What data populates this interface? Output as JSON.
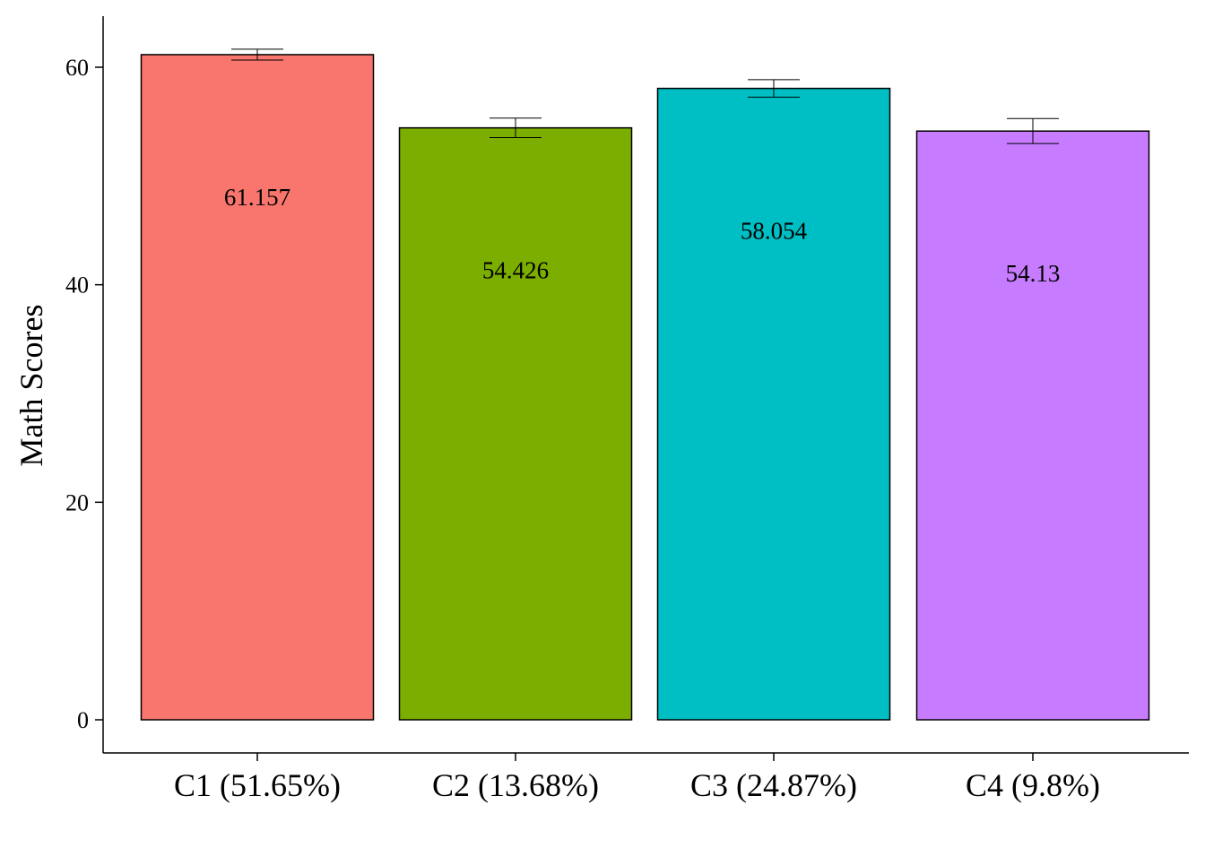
{
  "chart_data": {
    "type": "bar",
    "title": "",
    "xlabel": "",
    "ylabel": "Math Scores",
    "categories": [
      "C1 (51.65%)",
      "C2 (13.68%)",
      "C3 (24.87%)",
      "C4 (9.8%)"
    ],
    "values": [
      61.157,
      54.426,
      58.054,
      54.13
    ],
    "value_labels": [
      "61.157",
      "54.426",
      "58.054",
      "54.13"
    ],
    "error": [
      0.5,
      0.9,
      0.8,
      1.15
    ],
    "colors": [
      "#F8766D",
      "#7CAE00",
      "#00BFC4",
      "#C77CFF"
    ],
    "yticks": [
      0,
      20,
      40,
      60
    ],
    "ytick_labels": [
      "0",
      "20",
      "40",
      "60"
    ],
    "ylim": [
      -3.05,
      64.8
    ],
    "grid": false,
    "legend": "none"
  }
}
